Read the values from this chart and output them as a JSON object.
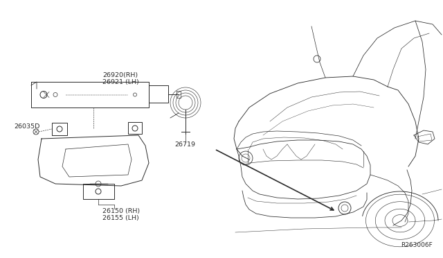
{
  "bg_color": "#ffffff",
  "line_color": "#2a2a2a",
  "diagram_ref": "R263006F",
  "fig_width": 6.4,
  "fig_height": 3.72,
  "dpi": 100,
  "label_26920": "26920(RH)",
  "label_26921": "26921 (LH)",
  "label_26035D": "26035D",
  "label_26719": "26719",
  "label_26150": "26150 (RH)",
  "label_26155": "26155 (LH)"
}
